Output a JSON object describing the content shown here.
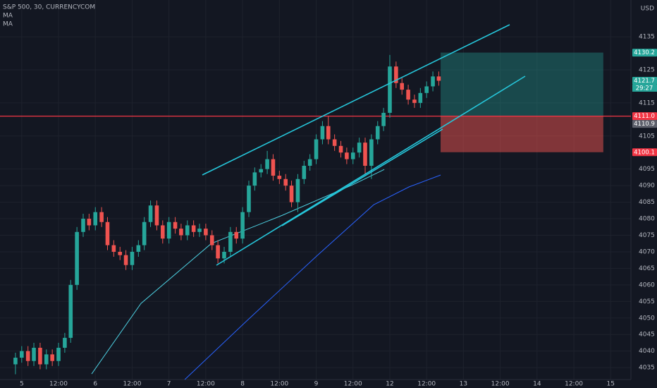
{
  "chart_data": {
    "type": "candlestick",
    "title": "S&P 500, 30, CURRENCYCOM",
    "currency": "USD",
    "x": [
      -0.17,
      0,
      0.17,
      0.33,
      0.5,
      0.67,
      0.83,
      1,
      1.17,
      1.33,
      1.5,
      1.67,
      1.83,
      2,
      2.17,
      2.33,
      2.5,
      2.67,
      2.83,
      3,
      3.17,
      3.33,
      3.5,
      3.67,
      3.83,
      4,
      4.17,
      4.33,
      4.5,
      4.67,
      4.83,
      5,
      5.17,
      5.33,
      5.5,
      5.67,
      5.83,
      6,
      6.17,
      6.33,
      6.5,
      6.67,
      6.83,
      7,
      7.17,
      7.33,
      7.5,
      7.67,
      7.83,
      8,
      8.17,
      8.33,
      8.5,
      8.67,
      8.83,
      9,
      9.17,
      9.33,
      9.5,
      9.67,
      9.83,
      10,
      10.17,
      10.33,
      10.5,
      10.67,
      10.83,
      11,
      11.17,
      11.33
    ],
    "open": [
      4036,
      4038,
      4040,
      4037,
      4041,
      4036,
      4039,
      4037,
      4041,
      4044,
      4060,
      4076,
      4080,
      4078,
      4082,
      4079,
      4072,
      4070,
      4069,
      4066,
      4070,
      4072,
      4079,
      4084,
      4078,
      4074,
      4079,
      4077,
      4075,
      4078,
      4076,
      4077,
      4075,
      4072,
      4068,
      4070,
      4076,
      4074,
      4082,
      4090,
      4094,
      4095,
      4098,
      4093,
      4092,
      4090,
      4085,
      4092,
      4096,
      4098,
      4104,
      4108,
      4104,
      4102,
      4100,
      4098,
      4100,
      4103,
      4096,
      4104,
      4108,
      4112,
      4126,
      4121,
      4119,
      4116,
      4115,
      4118,
      4120,
      4123
    ],
    "high": [
      4039.5,
      4041.5,
      4041.5,
      4042.5,
      4042.5,
      4040.5,
      4040.5,
      4042.5,
      4045.5,
      4061.5,
      4077.5,
      4081.5,
      4081.5,
      4083.5,
      4083.5,
      4080.5,
      4073.5,
      4071.5,
      4070.5,
      4071.5,
      4073.5,
      4080.5,
      4085.5,
      4085.5,
      4079.5,
      4080.5,
      4080.5,
      4078.5,
      4079.5,
      4079.5,
      4078.5,
      4078.5,
      4076.5,
      4073.5,
      4071.5,
      4077.5,
      4077.5,
      4083.5,
      4091.5,
      4095.5,
      4096.5,
      4100.5,
      4099.5,
      4094.5,
      4093.5,
      4091.5,
      4093.5,
      4097.5,
      4099.5,
      4105.5,
      4109.5,
      4111,
      4105.5,
      4103.5,
      4101.5,
      4101.5,
      4104.5,
      4104.5,
      4105.5,
      4109.5,
      4113.5,
      4129.5,
      4127.5,
      4122.5,
      4120.5,
      4117.5,
      4119.5,
      4121.5,
      4124.5,
      4124.5
    ],
    "low": [
      4033,
      4036.5,
      4035.5,
      4035.5,
      4034.5,
      4034.5,
      4035.5,
      4035.5,
      4039.5,
      4042.5,
      4058.5,
      4074.5,
      4076.5,
      4076.5,
      4077.5,
      4070.5,
      4068.5,
      4067.5,
      4064.5,
      4064.5,
      4068.5,
      4070.5,
      4077.5,
      4076.5,
      4072.5,
      4072.5,
      4075.5,
      4073.5,
      4073.5,
      4074.5,
      4074.5,
      4073.5,
      4070.5,
      4066.5,
      4066.5,
      4068.5,
      4072.5,
      4072.5,
      4080.5,
      4088.5,
      4092.5,
      4093.5,
      4091.5,
      4090.5,
      4088.5,
      4083.5,
      4082,
      4090.5,
      4094.5,
      4096.5,
      4102.5,
      4102.5,
      4100.5,
      4098.5,
      4096.5,
      4096.5,
      4098.5,
      4093.5,
      4092,
      4102.5,
      4106.5,
      4110.5,
      4119.5,
      4117.5,
      4114.5,
      4113.5,
      4113.5,
      4116.5,
      4118.5,
      4120.2
    ],
    "close": [
      4038,
      4040,
      4037,
      4041,
      4036,
      4039,
      4037,
      4041,
      4044,
      4060,
      4076,
      4080,
      4078,
      4082,
      4079,
      4072,
      4070,
      4069,
      4066,
      4070,
      4072,
      4079,
      4084,
      4078,
      4074,
      4079,
      4077,
      4075,
      4078,
      4076,
      4077,
      4075,
      4072,
      4068,
      4070,
      4076,
      4074,
      4082,
      4090,
      4094,
      4095,
      4098,
      4093,
      4092,
      4090,
      4085,
      4092,
      4096,
      4098,
      4104,
      4108,
      4104,
      4102,
      4100,
      4098,
      4100,
      4103,
      4096,
      4104,
      4108,
      4112,
      4126,
      4121,
      4119,
      4116,
      4115,
      4118,
      4120,
      4123,
      4121.7
    ],
    "up_color": "#26a69a",
    "down_color": "#ef5350",
    "indicators": [
      {
        "name": "MA",
        "color": "#4dd0e1",
        "x": [
          1.9,
          3.24,
          5.15,
          7.07,
          8.98,
          9.85
        ],
        "values": [
          4033.1,
          4054.4,
          4072.5,
          4081,
          4090.2,
          4094.9
        ]
      },
      {
        "name": "MA",
        "color": "#2962ff",
        "x": [
          4.43,
          6.11,
          8.03,
          9.56,
          10.52,
          11.38
        ],
        "values": [
          4031.4,
          4049.1,
          4068.9,
          4084.2,
          4089.6,
          4093.2
        ]
      }
    ],
    "xlim": [
      -0.59,
      16.55
    ],
    "xticks": [
      {
        "value": 0,
        "label": "5"
      },
      {
        "value": 1,
        "label": "12:00"
      },
      {
        "value": 2,
        "label": "6"
      },
      {
        "value": 3,
        "label": "12:00"
      },
      {
        "value": 4,
        "label": "7"
      },
      {
        "value": 5,
        "label": "12:00"
      },
      {
        "value": 6,
        "label": "8"
      },
      {
        "value": 7,
        "label": "12:00"
      },
      {
        "value": 8,
        "label": "9"
      },
      {
        "value": 9,
        "label": "12:00"
      },
      {
        "value": 10,
        "label": "12"
      },
      {
        "value": 11,
        "label": "12:00"
      },
      {
        "value": 12,
        "label": "13"
      },
      {
        "value": 13,
        "label": "12:00"
      },
      {
        "value": 14,
        "label": "14"
      },
      {
        "value": 15,
        "label": "12:00"
      },
      {
        "value": 16,
        "label": "15"
      }
    ],
    "ylim": [
      4031.4,
      4146.1
    ],
    "yticks": [
      4035,
      4040,
      4045,
      4050,
      4055,
      4060,
      4065,
      4070,
      4075,
      4080,
      4085,
      4090,
      4095,
      4105,
      4115,
      4125,
      4135
    ],
    "grid": true,
    "position": {
      "xrange": [
        11.38,
        15.8
      ],
      "target": 4130.2,
      "entry": 4111,
      "stop": 4100.1,
      "profit_color": "#26a69a",
      "loss_color": "#ef5350"
    },
    "horizontal_line": {
      "value": 4111,
      "color": "#f23645"
    },
    "price_labels": [
      {
        "value": 4130.2,
        "label": "4130.2",
        "color": "#26a69a"
      },
      {
        "value": 4121.7,
        "label": "4121.7",
        "color": "#26a69a"
      },
      {
        "value": 4111,
        "label": "4111.0",
        "color": "#f23645"
      },
      {
        "value": 4110.9,
        "label": "4110.9",
        "color": "#5d606b"
      },
      {
        "value": 4100.1,
        "label": "4100.1",
        "color": "#f23645"
      }
    ],
    "countdown": "29:27"
  }
}
